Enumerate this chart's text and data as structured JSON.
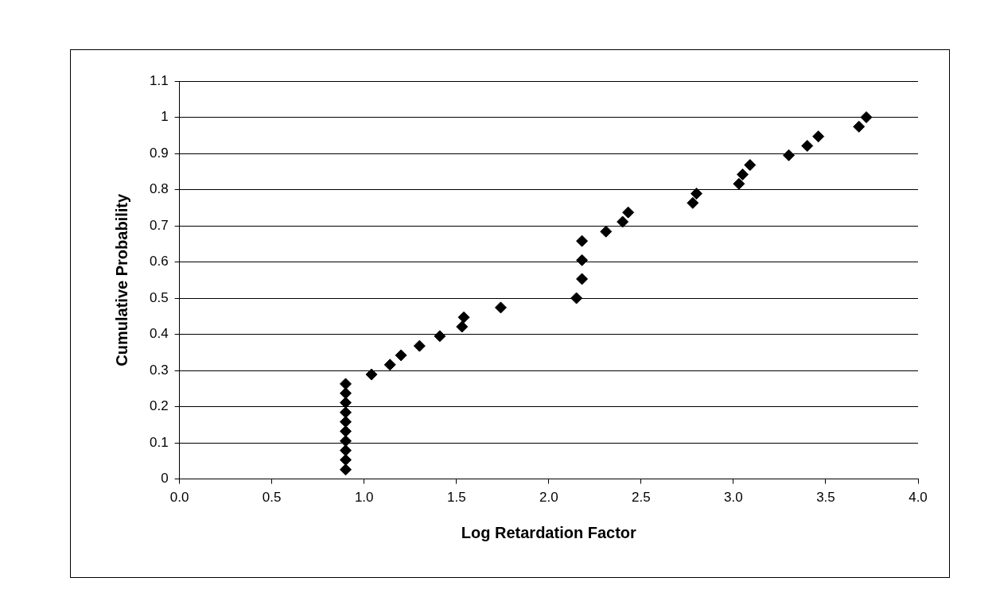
{
  "chart_data": {
    "type": "scatter",
    "xlabel": "Log Retardation Factor",
    "ylabel": "Cumulative Probability",
    "x": [
      0.9,
      0.9,
      0.9,
      0.9,
      0.9,
      0.9,
      0.9,
      0.9,
      0.9,
      0.9,
      1.04,
      1.14,
      1.2,
      1.3,
      1.41,
      1.53,
      1.54,
      1.74,
      2.15,
      2.18,
      2.18,
      2.18,
      2.31,
      2.4,
      2.43,
      2.78,
      2.8,
      3.03,
      3.05,
      3.09,
      3.3,
      3.4,
      3.46,
      3.68,
      3.72
    ],
    "series": [
      {
        "color": "#000000",
        "values": [
          0.026,
          0.053,
          0.079,
          0.105,
          0.132,
          0.158,
          0.184,
          0.211,
          0.237,
          0.263,
          0.289,
          0.316,
          0.342,
          0.368,
          0.395,
          0.421,
          0.447,
          0.474,
          0.5,
          0.553,
          0.605,
          0.658,
          0.684,
          0.711,
          0.737,
          0.763,
          0.789,
          0.816,
          0.842,
          0.868,
          0.895,
          0.921,
          0.947,
          0.974,
          1.0
        ]
      }
    ],
    "xlim": [
      0,
      4
    ],
    "xticks": [
      {
        "value": 0,
        "label": "0.0"
      },
      0.5,
      {
        "value": 1,
        "label": "1.0"
      },
      1.5,
      {
        "value": 2,
        "label": "2.0"
      },
      2.5,
      {
        "value": 3,
        "label": "3.0"
      },
      3.5,
      {
        "value": 4,
        "label": "4.0"
      }
    ],
    "ylim": [
      0,
      1.1
    ],
    "yticks": [
      0,
      0.1,
      0.2,
      0.3,
      0.4,
      0.5,
      0.6,
      0.7,
      0.8,
      0.9,
      1,
      1.1
    ],
    "grid": "y",
    "marker": "diamond"
  }
}
